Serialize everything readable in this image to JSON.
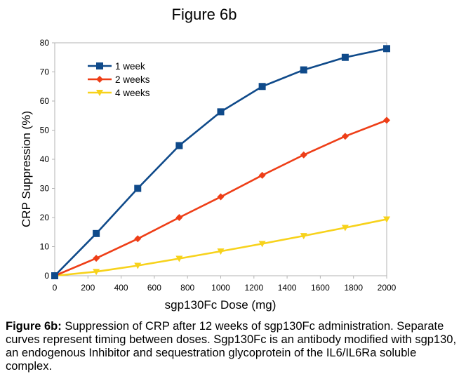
{
  "figure": {
    "title": "Figure 6b"
  },
  "caption": {
    "lead": "Figure 6b:",
    "text": " Suppression of CRP after 12 weeks of sgp130Fc administration. Separate curves represent timing between doses. Sgp130Fc is an antibody modified with sgp130, an endogenous Inhibitor and sequestration glycoprotein of the IL6/IL6Ra soluble complex."
  },
  "chart_data": {
    "type": "line",
    "title": "Figure 6b",
    "xlabel": "sgp130Fc Dose (mg)",
    "ylabel": "CRP Suppression (%)",
    "xlim": [
      0,
      2000
    ],
    "ylim": [
      0,
      80
    ],
    "xticks": [
      0,
      200,
      400,
      600,
      800,
      1000,
      1200,
      1400,
      1600,
      1800,
      2000
    ],
    "yticks": [
      0,
      10,
      20,
      30,
      40,
      50,
      60,
      70,
      80
    ],
    "grid": false,
    "legend_position": "top-left",
    "series": [
      {
        "name": "1 week",
        "color": "#0f4a8a",
        "marker": "square",
        "x": [
          0,
          250,
          500,
          750,
          1000,
          1250,
          1500,
          1750,
          2000
        ],
        "y": [
          0,
          14.5,
          30,
          44.7,
          56.3,
          65,
          70.7,
          75,
          78
        ]
      },
      {
        "name": "2 weeks",
        "color": "#ee3e17",
        "marker": "diamond",
        "x": [
          0,
          250,
          500,
          750,
          1000,
          1250,
          1500,
          1750,
          2000
        ],
        "y": [
          0,
          6,
          12.7,
          20,
          27.1,
          34.5,
          41.5,
          47.9,
          53.4
        ]
      },
      {
        "name": "4 weeks",
        "color": "#f7d21b",
        "marker": "triangle-down",
        "x": [
          0,
          250,
          500,
          750,
          1000,
          1250,
          1500,
          1750,
          2000
        ],
        "y": [
          0,
          1.4,
          3.5,
          5.9,
          8.4,
          11,
          13.7,
          16.5,
          19.4
        ]
      }
    ]
  }
}
